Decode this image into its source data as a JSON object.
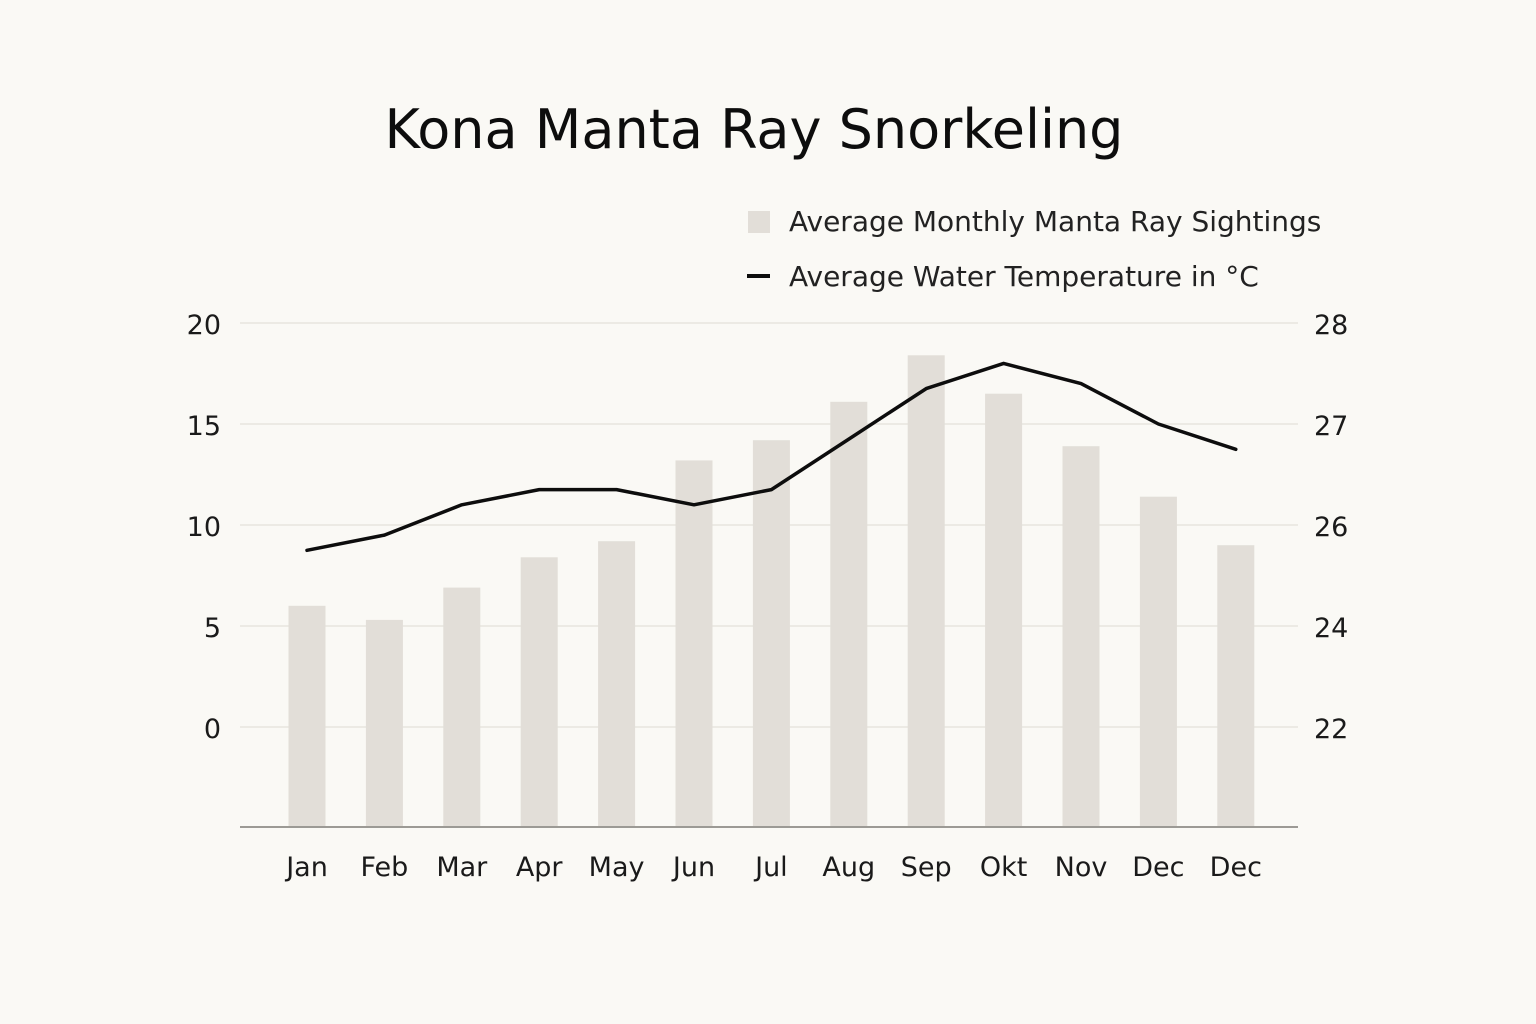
{
  "chart_data": {
    "type": "bar",
    "title": "Kona Manta Ray Snorkeling",
    "categories": [
      "Jan",
      "Feb",
      "Mar",
      "Apr",
      "May",
      "Jun",
      "Jul",
      "Aug",
      "Sep",
      "Okt",
      "Nov",
      "Dec",
      "Dec"
    ],
    "series": [
      {
        "name": "Average Monthly Manta Ray Sightings",
        "type": "bar",
        "axis": "left",
        "color": "#e2ded8",
        "values": [
          6,
          5.3,
          6.9,
          8.4,
          9.2,
          13.2,
          14.2,
          16.1,
          18.4,
          16.5,
          13.9,
          11.4,
          9.0
        ]
      },
      {
        "name": "Average Water Temperature in °C",
        "type": "line",
        "axis": "right",
        "color": "#0d0d0d",
        "values": [
          25.75,
          25.9,
          26.2,
          26.35,
          26.35,
          26.2,
          26.35,
          26.85,
          27.35,
          27.6,
          27.4,
          27.0,
          26.75
        ]
      }
    ],
    "y_left": {
      "ticks": [
        "20",
        "15",
        "10",
        "5",
        "0"
      ],
      "ylim": [
        -5,
        20
      ]
    },
    "y_right": {
      "ticks": [
        "28",
        "27",
        "26",
        "24",
        "22"
      ]
    },
    "grid": true,
    "legend_position": "top-right"
  }
}
